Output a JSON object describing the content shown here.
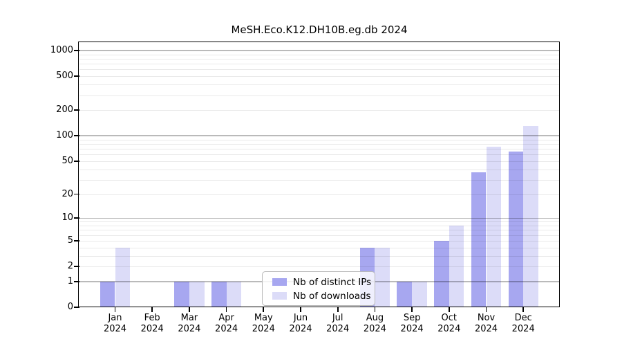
{
  "figure": {
    "title": "MeSH.Eco.K12.DH10B.eg.db 2024"
  },
  "chart_data": {
    "type": "bar",
    "title": "MeSH.Eco.K12.DH10B.eg.db 2024",
    "categories": [
      "Jan 2024",
      "Feb 2024",
      "Mar 2024",
      "Apr 2024",
      "May 2024",
      "Jun 2024",
      "Jul 2024",
      "Aug 2024",
      "Sep 2024",
      "Oct 2024",
      "Nov 2024",
      "Dec 2024"
    ],
    "x_tick_month_labels": [
      "Jan",
      "Feb",
      "Mar",
      "Apr",
      "May",
      "Jun",
      "Jul",
      "Aug",
      "Sep",
      "Oct",
      "Nov",
      "Dec"
    ],
    "x_tick_year_label": "2024",
    "series": [
      {
        "name": "Nb of distinct IPs",
        "color": "#a7a7f0",
        "values": [
          1,
          0,
          1,
          1,
          0,
          0,
          0,
          4,
          1,
          5,
          37,
          65
        ]
      },
      {
        "name": "Nb of downloads",
        "color": "#dcdcf8",
        "values": [
          4,
          0,
          1,
          1,
          0,
          0,
          0,
          4,
          1,
          8,
          75,
          130
        ]
      }
    ],
    "y_scale": "log10(1+x)",
    "ylim": [
      0,
      1228
    ],
    "y_axis_ticks": [
      0,
      1,
      2,
      5,
      10,
      20,
      50,
      100,
      200,
      500,
      1000
    ],
    "major_gridline_values": [
      1,
      10,
      100,
      1000
    ],
    "minor_gridline_values": [
      2,
      3,
      4,
      5,
      6,
      7,
      8,
      9,
      20,
      30,
      40,
      50,
      60,
      70,
      80,
      90,
      200,
      300,
      400,
      500,
      600,
      700,
      800,
      900
    ],
    "grid": true,
    "legend_position": "lower center"
  },
  "legend": {
    "items": [
      {
        "label": "Nb of distinct IPs",
        "color": "#a7a7f0"
      },
      {
        "label": "Nb of downloads",
        "color": "#dcdcf8"
      }
    ]
  },
  "colors": {
    "bar_distinct_ips": "#a7a7f0",
    "bar_downloads": "#dcdcf8",
    "major_grid": "#bababa",
    "minor_grid": "#e9e9e9",
    "axis": "#000000",
    "legend_border": "#b9b9b9",
    "background": "#ffffff"
  }
}
